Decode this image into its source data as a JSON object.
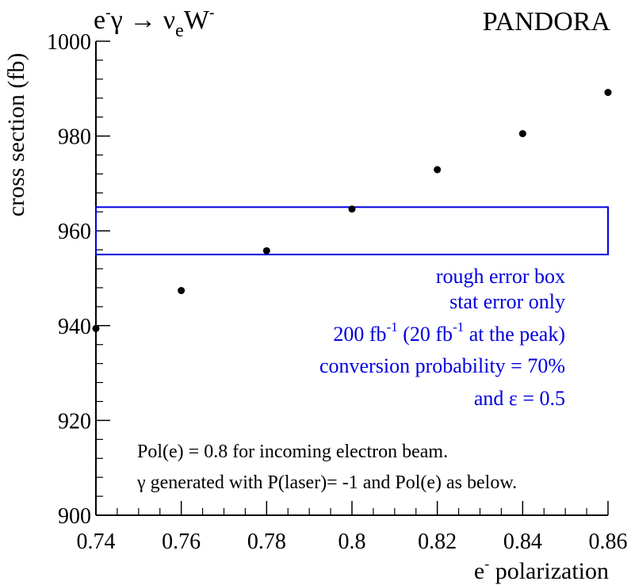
{
  "chart_data": {
    "type": "scatter",
    "title_left": {
      "p1": "e",
      "s1": "-",
      "p2": "γ → ν",
      "sub": "e",
      "p3": "W",
      "s2": "-"
    },
    "title_right": "PANDORA",
    "ylabel": "cross section (fb)",
    "xlabel": {
      "p1": "e",
      "sup": "-",
      "p2": " polarization"
    },
    "xlim": [
      0.74,
      0.86
    ],
    "ylim": [
      900,
      1000
    ],
    "x_ticks": [
      {
        "v": 0.74,
        "label": "0.74"
      },
      {
        "v": 0.76,
        "label": "0.76"
      },
      {
        "v": 0.78,
        "label": "0.78"
      },
      {
        "v": 0.8,
        "label": "0.8"
      },
      {
        "v": 0.82,
        "label": "0.82"
      },
      {
        "v": 0.84,
        "label": "0.84"
      },
      {
        "v": 0.86,
        "label": "0.86"
      }
    ],
    "y_ticks": [
      {
        "v": 900,
        "label": "900"
      },
      {
        "v": 920,
        "label": "920"
      },
      {
        "v": 940,
        "label": "940"
      },
      {
        "v": 960,
        "label": "960"
      },
      {
        "v": 980,
        "label": "980"
      },
      {
        "v": 1000,
        "label": "1000"
      }
    ],
    "points": [
      {
        "x": 0.74,
        "y": 939.4
      },
      {
        "x": 0.76,
        "y": 947.4
      },
      {
        "x": 0.78,
        "y": 955.8
      },
      {
        "x": 0.8,
        "y": 964.6
      },
      {
        "x": 0.82,
        "y": 972.9
      },
      {
        "x": 0.84,
        "y": 980.5
      },
      {
        "x": 0.86,
        "y": 989.2
      }
    ],
    "error_box": {
      "x0": 0.74,
      "x1": 0.86,
      "y0": 955,
      "y1": 965,
      "color": "#0000dd"
    },
    "annotations_blue": {
      "line1": "rough error box",
      "line2": "stat error only",
      "line3": {
        "a": "200 fb",
        "sa": "-1",
        "b": " (20 fb",
        "sb": "-1",
        "c": " at the peak)"
      },
      "line4": "conversion probability = 70%",
      "line5": "and ε = 0.5"
    },
    "annotations_black": {
      "line1": "Pol(e) = 0.8 for incoming electron beam.",
      "line2": "γ generated with P(laser)= -1 and Pol(e) as below."
    },
    "colors": {
      "axis": "#000000",
      "points": "#000000",
      "annotation": "#0000dd"
    }
  }
}
